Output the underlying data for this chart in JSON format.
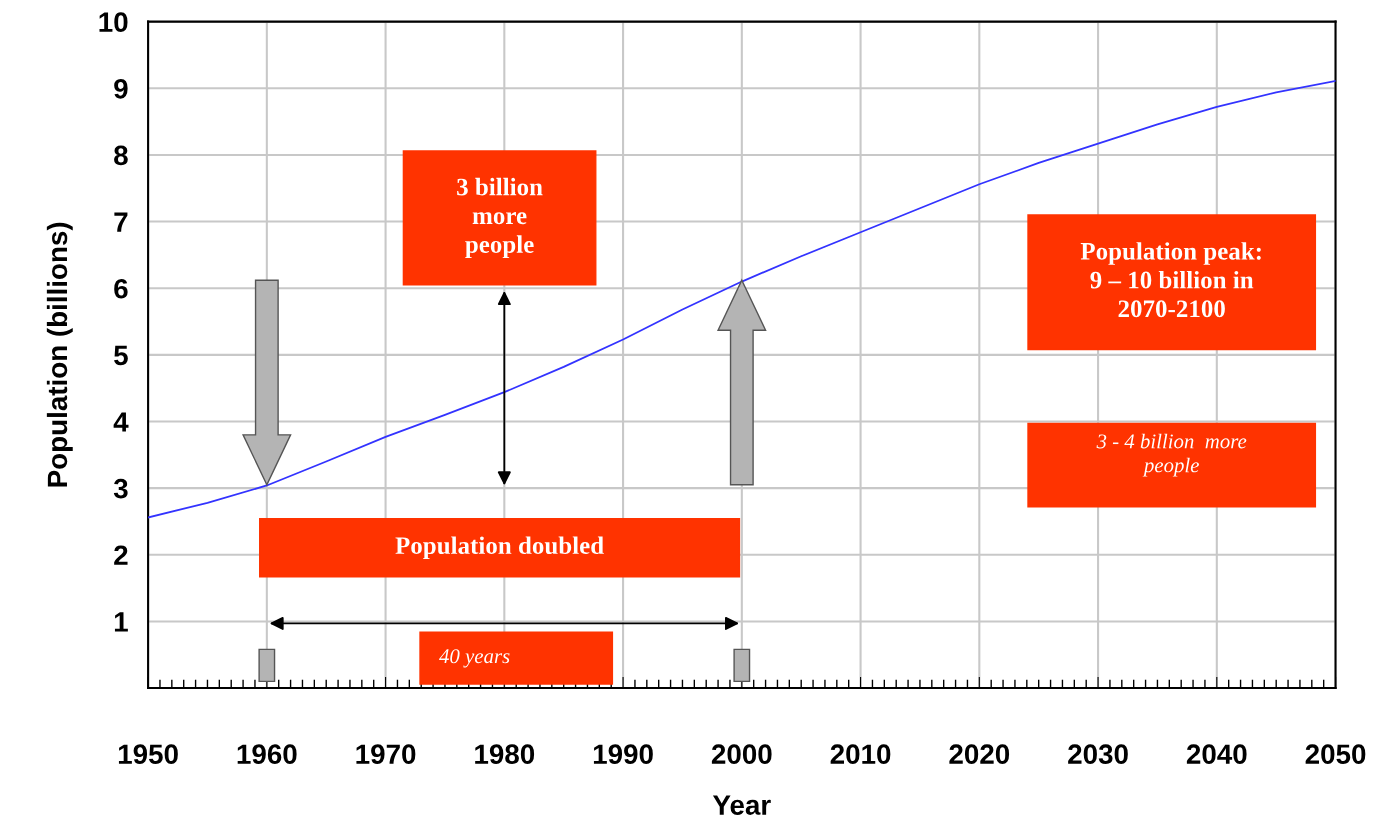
{
  "chart_data": {
    "type": "line",
    "xlabel": "Year",
    "ylabel": "Population (billions)",
    "x": [
      1950,
      1955,
      1960,
      1965,
      1970,
      1975,
      1980,
      1985,
      1990,
      1995,
      2000,
      2005,
      2010,
      2015,
      2020,
      2025,
      2030,
      2035,
      2040,
      2045,
      2050
    ],
    "series": [
      {
        "color": "#3333ff",
        "values": [
          2.56,
          2.78,
          3.04,
          3.4,
          3.77,
          4.1,
          4.44,
          4.82,
          5.23,
          5.68,
          6.1,
          6.48,
          6.84,
          7.2,
          7.56,
          7.88,
          8.17,
          8.46,
          8.72,
          8.94,
          9.11
        ]
      }
    ],
    "xlim": [
      1950,
      2050
    ],
    "xticks": [
      1950,
      1960,
      1970,
      1980,
      1990,
      2000,
      2010,
      2020,
      2030,
      2040,
      2050
    ],
    "ylim": [
      0,
      10
    ],
    "yticks": [
      1,
      2,
      3,
      4,
      5,
      6,
      7,
      8,
      9,
      10
    ],
    "grid": true,
    "marker": "none",
    "line_style": "solid",
    "annotations": [
      "3 billion\nmore\npeople",
      "Population peak:\n9 – 10 billion in\n2070-2100",
      "3 - 4 billion  more\npeople",
      "Population doubled",
      "40 years"
    ]
  }
}
